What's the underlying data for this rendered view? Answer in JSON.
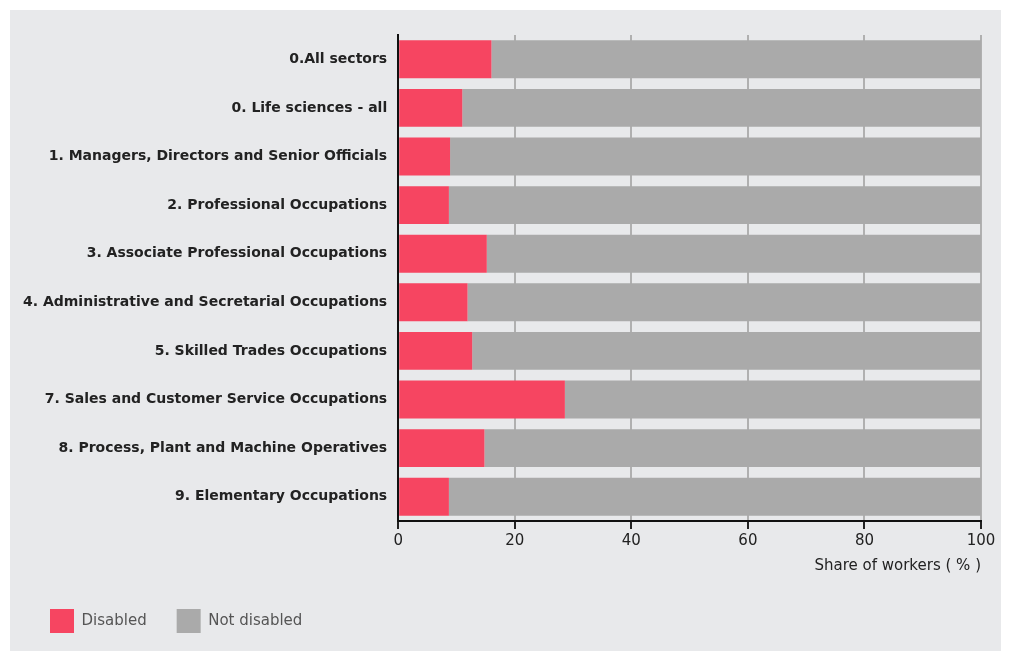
{
  "chart_data": {
    "type": "bar",
    "orientation": "horizontal",
    "stacked": true,
    "xlabel": "Share of workers ( % )",
    "categories": [
      "0.All sectors",
      "0. Life sciences - all",
      "1. Managers, Directors and Senior Officials",
      "2. Professional Occupations",
      "3. Associate Professional Occupations",
      "4. Administrative and Secretarial Occupations",
      "5. Skilled Trades Occupations",
      "7. Sales and Customer Service Occupations",
      "8. Process, Plant and Machine Operatives",
      "9. Elementary Occupations"
    ],
    "series": [
      {
        "name": "Disabled",
        "color": "#f64561",
        "values": [
          16.0,
          11.0,
          8.9,
          8.7,
          15.2,
          11.9,
          12.7,
          28.6,
          14.8,
          8.7
        ]
      },
      {
        "name": "Not disabled",
        "color": "#aaaaaa",
        "values": [
          84.0,
          89.0,
          91.1,
          91.3,
          84.8,
          88.1,
          87.3,
          71.4,
          85.2,
          91.3
        ]
      }
    ],
    "xlim": [
      0,
      100
    ],
    "xticks": [
      0,
      20,
      40,
      60,
      80,
      100
    ],
    "grid": "x",
    "legend": "bottom left"
  }
}
